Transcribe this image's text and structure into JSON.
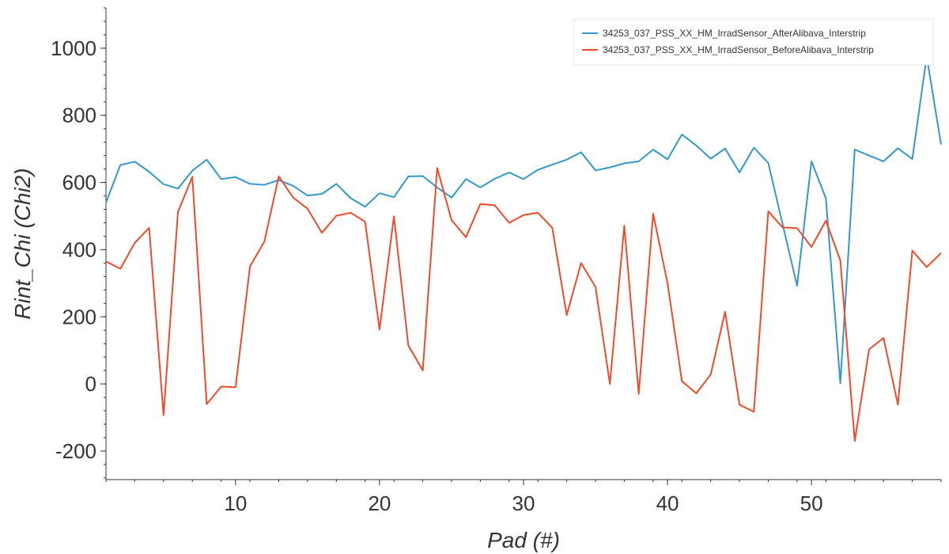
{
  "chart_data": {
    "type": "line",
    "title": "",
    "xlabel": "Pad (#)",
    "ylabel": "Rint_Chi (Chi2)",
    "xlim": [
      1,
      59
    ],
    "ylim": [
      -285,
      1120
    ],
    "x_ticks": [
      10,
      20,
      30,
      40,
      50
    ],
    "y_ticks": [
      -200,
      0,
      200,
      400,
      600,
      800,
      1000
    ],
    "grid": false,
    "legend_position": "top-right",
    "x": [
      1,
      2,
      3,
      4,
      5,
      6,
      7,
      8,
      9,
      10,
      11,
      12,
      13,
      14,
      15,
      16,
      17,
      18,
      19,
      20,
      21,
      22,
      23,
      24,
      25,
      26,
      27,
      28,
      29,
      30,
      31,
      32,
      33,
      34,
      35,
      36,
      37,
      38,
      39,
      40,
      41,
      42,
      43,
      44,
      45,
      46,
      47,
      48,
      49,
      50,
      51,
      52,
      53,
      54,
      55,
      56,
      57,
      58,
      59
    ],
    "series": [
      {
        "name": "34253_037_PSS_XX_HM_IrradSensor_AfterAlibava_Interstrip",
        "color": "#3399cc",
        "values": [
          540,
          652,
          662,
          632,
          595,
          582,
          635,
          668,
          610,
          616,
          596,
          593,
          607,
          590,
          561,
          566,
          596,
          553,
          528,
          568,
          556,
          618,
          619,
          585,
          555,
          610,
          585,
          611,
          630,
          610,
          638,
          653,
          668,
          690,
          636,
          645,
          657,
          663,
          698,
          669,
          743,
          710,
          671,
          701,
          630,
          704,
          658,
          475,
          292,
          663,
          553,
          2,
          698,
          680,
          663,
          702,
          670,
          975,
          713
        ]
      },
      {
        "name": "34253_037_PSS_XX_HM_IrradSensor_BeforeAlibava_Interstrip",
        "color": "#ee4b2b",
        "values": [
          365,
          343,
          420,
          465,
          -93,
          512,
          617,
          -60,
          -8,
          -10,
          350,
          424,
          618,
          555,
          522,
          450,
          501,
          510,
          483,
          162,
          499,
          115,
          40,
          643,
          488,
          437,
          536,
          532,
          480,
          503,
          510,
          465,
          205,
          360,
          289,
          0,
          471,
          -30,
          507,
          300,
          8,
          -28,
          28,
          215,
          -62,
          -83,
          514,
          466,
          464,
          408,
          486,
          368,
          -170,
          103,
          137,
          -62,
          397,
          348,
          390
        ]
      }
    ]
  }
}
